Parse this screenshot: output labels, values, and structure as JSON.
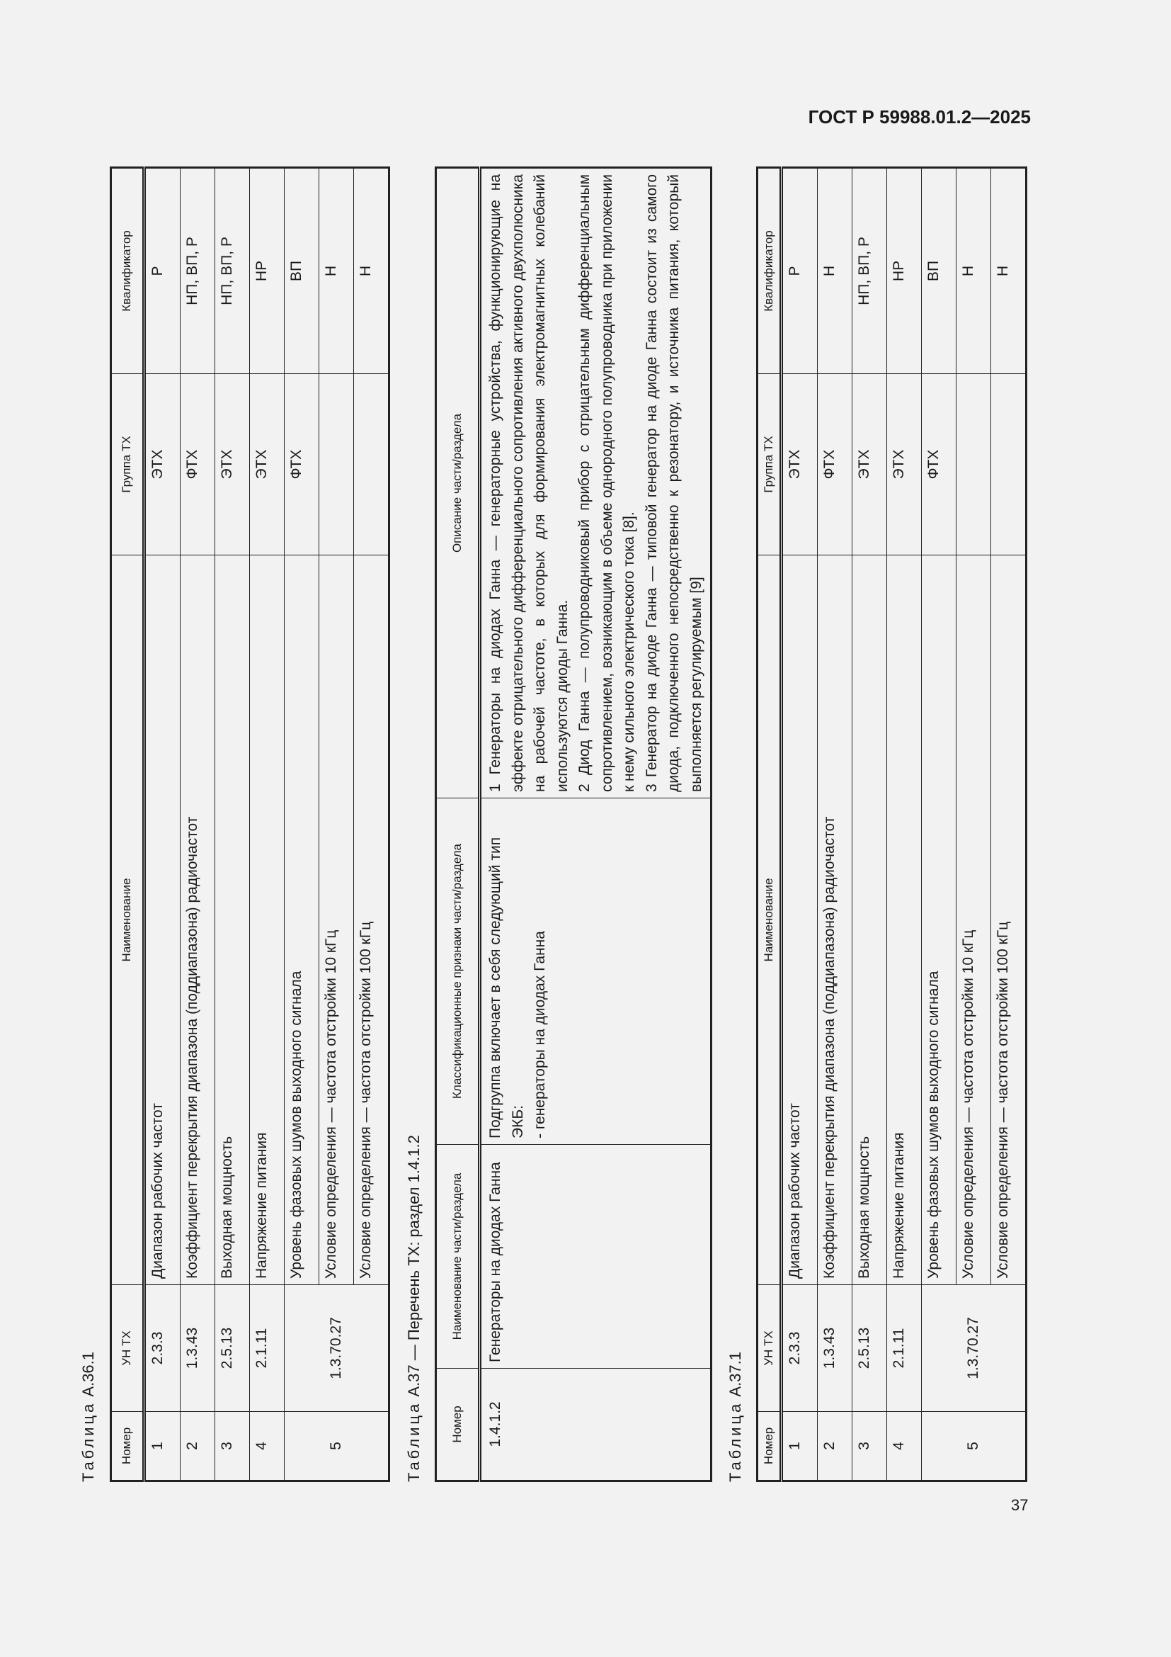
{
  "header": "ГОСТ Р 59988.01.2—2025",
  "page_number": "37",
  "table_a36_1": {
    "caption_word": "Таблица",
    "caption_id": "А.36.1",
    "columns": [
      "Номер",
      "УН ТХ",
      "Наименование",
      "Группа ТХ",
      "Квалификатор"
    ],
    "rows": [
      {
        "num": "1",
        "un": "2.3.3",
        "name": "Диапазон рабочих частот",
        "group": "ЭТХ",
        "qual": "Р"
      },
      {
        "num": "2",
        "un": "1.3.43",
        "name": "Коэффициент перекрытия диапазона (поддиапазона) радиочастот",
        "group": "ФТХ",
        "qual": "НП, ВП, Р"
      },
      {
        "num": "3",
        "un": "2.5.13",
        "name": "Выходная мощность",
        "group": "ЭТХ",
        "qual": "НП, ВП, Р"
      },
      {
        "num": "4",
        "un": "2.1.11",
        "name": "Напряжение питания",
        "group": "ЭТХ",
        "qual": "НР"
      },
      {
        "num": "5",
        "un": "1.3.70.27",
        "sub": [
          {
            "name": "Уровень фазовых шумов выходного сигнала",
            "group": "ФТХ",
            "qual": "ВП"
          },
          {
            "name": "Условие определения — частота отстройки 10 кГц",
            "group": "",
            "qual": "Н"
          },
          {
            "name": "Условие определения — частота отстройки 100 кГц",
            "group": "",
            "qual": "Н"
          }
        ]
      }
    ]
  },
  "table_a37": {
    "caption_word": "Таблица",
    "caption_rest": "А.37 — Перечень ТХ: раздел 1.4.1.2",
    "columns": [
      "Номер",
      "Наименование части/раздела",
      "Классификационные признаки части/раздела",
      "Описание части/раздела"
    ],
    "row": {
      "num": "1.4.1.2",
      "name": "Генераторы на диодах Ганна",
      "class_lines": [
        "Подгруппа включает в себя следующий тип ЭКБ:",
        "- генераторы на диодах Ганна"
      ],
      "desc": [
        "1 Генераторы на диодах Ганна — генераторные устройства, функционирующие на эффекте отрицательного дифференциального сопротивления активного двухполюсника на рабочей частоте, в которых для формирования электромагнитных колебаний используются диоды Ганна.",
        "2 Диод Ганна — полупроводниковый прибор с отрицательным дифференциальным сопротивлением, возникающим в объеме однородного полупроводника при приложении к нему сильного электрического тока [8].",
        "3 Генератор на диоде Ганна — типовой генератор на диоде Ганна состоит из самого диода, подключенного непосредственно к резонатору, и источника питания, который выполняется регулируемым [9]"
      ]
    }
  },
  "table_a37_1": {
    "caption_word": "Таблица",
    "caption_id": "А.37.1",
    "columns": [
      "Номер",
      "УН ТХ",
      "Наименование",
      "Группа ТХ",
      "Квалификатор"
    ],
    "rows": [
      {
        "num": "1",
        "un": "2.3.3",
        "name": "Диапазон рабочих частот",
        "group": "ЭТХ",
        "qual": "Р"
      },
      {
        "num": "2",
        "un": "1.3.43",
        "name": "Коэффициент перекрытия диапазона (поддиапазона) радиочастот",
        "group": "ФТХ",
        "qual": "Н"
      },
      {
        "num": "3",
        "un": "2.5.13",
        "name": "Выходная мощность",
        "group": "ЭТХ",
        "qual": "НП, ВП, Р"
      },
      {
        "num": "4",
        "un": "2.1.11",
        "name": "Напряжение питания",
        "group": "ЭТХ",
        "qual": "НР"
      },
      {
        "num": "5",
        "un": "1.3.70.27",
        "sub": [
          {
            "name": "Уровень фазовых шумов выходного сигнала",
            "group": "ФТХ",
            "qual": "ВП"
          },
          {
            "name": "Условие определения — частота отстройки 10 кГц",
            "group": "",
            "qual": "Н"
          },
          {
            "name": "Условие определения — частота отстройки 100 кГц",
            "group": "",
            "qual": "Н"
          }
        ]
      }
    ]
  }
}
